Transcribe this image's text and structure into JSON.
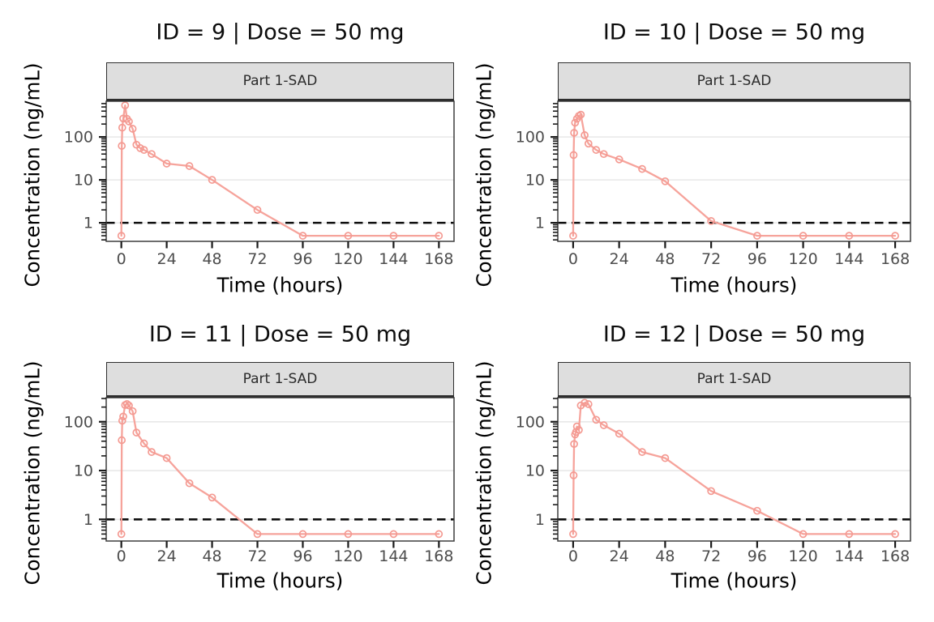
{
  "figure_title": "",
  "colors": {
    "series_line": "#F6A39B",
    "marker_stroke": "#F49A92",
    "gridline": "#e8e8e8",
    "panel_border": "#3d3d3d",
    "tick": "#1a1a1a",
    "tick_label": "#4d4d4d",
    "strip_bg": "#dedede",
    "strip_border": "#2e2e2e",
    "lloq_line": "#0d0d0d",
    "title_text": "#0d0d0d"
  },
  "chart_data": [
    {
      "type": "line",
      "title": "ID = 9 | Dose = 50 mg",
      "strip_label": "Part 1-SAD",
      "xlabel": "Time (hours)",
      "ylabel": "Concentration (ng/mL)",
      "yscale": "log",
      "xlim": [
        -8,
        176
      ],
      "ylim": [
        0.37,
        680
      ],
      "x_ticks": [
        0,
        24,
        48,
        72,
        96,
        120,
        144,
        168
      ],
      "y_ticks": [
        1,
        10,
        100
      ],
      "lloq": 1,
      "grid": "major-horizontal",
      "legend": "none",
      "series": [
        {
          "name": "ID 9",
          "x": [
            0,
            0.25,
            0.5,
            1,
            2,
            3,
            4,
            6,
            8,
            10,
            12,
            16,
            24,
            36,
            48,
            72,
            96,
            120,
            144,
            168
          ],
          "y": [
            0.5,
            62,
            165,
            270,
            545,
            265,
            230,
            155,
            66,
            55,
            50,
            40,
            24,
            21,
            10,
            2,
            0.5,
            0.5,
            0.5,
            0.5
          ]
        }
      ]
    },
    {
      "type": "line",
      "title": "ID = 10 | Dose = 50 mg",
      "strip_label": "Part 1-SAD",
      "xlabel": "Time (hours)",
      "ylabel": "Concentration (ng/mL)",
      "yscale": "log",
      "xlim": [
        -8,
        176
      ],
      "ylim": [
        0.37,
        680
      ],
      "x_ticks": [
        0,
        24,
        48,
        72,
        96,
        120,
        144,
        168
      ],
      "y_ticks": [
        1,
        10,
        100
      ],
      "lloq": 1,
      "grid": "major-horizontal",
      "legend": "none",
      "series": [
        {
          "name": "ID 10",
          "x": [
            0,
            0.25,
            0.5,
            1,
            2,
            3,
            4,
            6,
            8,
            12,
            16,
            24,
            36,
            48,
            72,
            96,
            120,
            144,
            168
          ],
          "y": [
            0.5,
            38,
            125,
            215,
            265,
            310,
            330,
            110,
            70,
            50,
            40,
            30,
            18,
            9.3,
            1.1,
            0.5,
            0.5,
            0.5,
            0.5
          ]
        }
      ]
    },
    {
      "type": "line",
      "title": "ID = 11 | Dose = 50 mg",
      "strip_label": "Part 1-SAD",
      "xlabel": "Time (hours)",
      "ylabel": "Concentration (ng/mL)",
      "yscale": "log",
      "xlim": [
        -8,
        176
      ],
      "ylim": [
        0.36,
        312
      ],
      "x_ticks": [
        0,
        24,
        48,
        72,
        96,
        120,
        144,
        168
      ],
      "y_ticks": [
        1,
        10,
        100
      ],
      "lloq": 1,
      "grid": "major-horizontal",
      "legend": "none",
      "series": [
        {
          "name": "ID 11",
          "x": [
            0,
            0.25,
            0.5,
            1,
            2,
            3,
            4,
            6,
            8,
            12,
            16,
            24,
            36,
            48,
            72,
            96,
            120,
            144,
            168
          ],
          "y": [
            0.5,
            42,
            105,
            128,
            220,
            232,
            215,
            165,
            60,
            36,
            24,
            18,
            5.5,
            2.8,
            0.5,
            0.5,
            0.5,
            0.5,
            0.5
          ]
        }
      ]
    },
    {
      "type": "line",
      "title": "ID = 12 | Dose = 50 mg",
      "strip_label": "Part 1-SAD",
      "xlabel": "Time (hours)",
      "ylabel": "Concentration (ng/mL)",
      "yscale": "log",
      "xlim": [
        -8,
        176
      ],
      "ylim": [
        0.36,
        312
      ],
      "x_ticks": [
        0,
        24,
        48,
        72,
        96,
        120,
        144,
        168
      ],
      "y_ticks": [
        1,
        10,
        100
      ],
      "lloq": 1,
      "grid": "major-horizontal",
      "legend": "none",
      "series": [
        {
          "name": "ID 12",
          "x": [
            0,
            0.25,
            0.5,
            1,
            1.5,
            2,
            3,
            4,
            6,
            8,
            12,
            16,
            24,
            36,
            48,
            72,
            96,
            120,
            144,
            168
          ],
          "y": [
            0.5,
            8,
            35,
            55,
            62,
            80,
            68,
            215,
            245,
            230,
            110,
            85,
            57,
            24,
            18,
            3.8,
            1.5,
            0.5,
            0.5,
            0.5
          ]
        }
      ]
    }
  ]
}
